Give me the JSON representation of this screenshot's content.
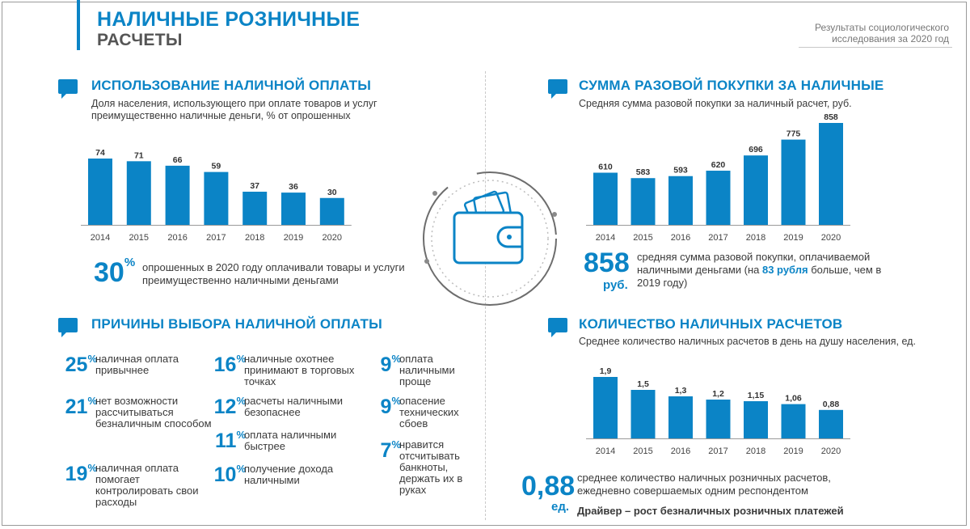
{
  "header": {
    "title_line1": "НАЛИЧНЫЕ РОЗНИЧНЫЕ",
    "title_line2": "РАСЧЕТЫ",
    "source_note": "Результаты социологического исследования за 2020 год"
  },
  "usage": {
    "title": "ИСПОЛЬЗОВАНИЕ НАЛИЧНОЙ ОПЛАТЫ",
    "subtitle": "Доля населения, использующего при оплате товаров и услуг преимущественно наличные деньги, % от опрошенных",
    "highlight_value": "30",
    "highlight_unit": "%",
    "highlight_text": "опрошенных в 2020 году оплачивали товары и услуги преимущественно наличными деньгами"
  },
  "purchase": {
    "title": "СУММА РАЗОВОЙ ПОКУПКИ ЗА НАЛИЧНЫЕ",
    "subtitle": "Средняя сумма разовой покупки за наличный расчет, руб.",
    "highlight_value": "858",
    "highlight_unit": "руб.",
    "highlight_text_a": "средняя сумма разовой покупки, оплачиваемой наличными деньгами (на ",
    "highlight_bold": "83 рубля",
    "highlight_text_b": " больше, чем в 2019 году)"
  },
  "reasons": {
    "title": "ПРИЧИНЫ ВЫБОРА НАЛИЧНОЙ ОПЛАТЫ",
    "items": [
      {
        "pct": "25",
        "unit": "%",
        "text": "наличная оплата привычнее"
      },
      {
        "pct": "21",
        "unit": "%",
        "text": "нет возможности рассчитываться безналичным способом"
      },
      {
        "pct": "19",
        "unit": "%",
        "text": "наличная оплата помогает контролировать свои расходы"
      },
      {
        "pct": "16",
        "unit": "%",
        "text": "наличные охотнее принимают в торговых точках"
      },
      {
        "pct": "12",
        "unit": "%",
        "text": "расчеты наличными безопаснее"
      },
      {
        "pct": "11",
        "unit": "%",
        "text": "оплата наличными быстрее"
      },
      {
        "pct": "10",
        "unit": "%",
        "text": "получение дохода наличными"
      },
      {
        "pct": "9",
        "unit": "%",
        "text": "оплата наличными проще"
      },
      {
        "pct": "9",
        "unit": "%",
        "text": "опасение технических сбоев"
      },
      {
        "pct": "7",
        "unit": "%",
        "text": "нравится отсчитывать банкноты, держать их в руках"
      }
    ]
  },
  "count": {
    "title": "КОЛИЧЕСТВО НАЛИЧНЫХ РАСЧЕТОВ",
    "subtitle": "Среднее количество наличных расчетов в день на душу населения, ед.",
    "highlight_value": "0,88",
    "highlight_unit": "ед.",
    "highlight_text": "среднее количество наличных розничных расчетов, ежедневно совершаемых одним респондентом",
    "driver": "Драйвер – рост безналичных розничных платежей"
  },
  "icons": {
    "section": "speech-bubble-icon",
    "center": "wallet-icon"
  },
  "colors": {
    "accent": "#0b84c6",
    "bar": "#0b84c6",
    "text": "#3a3a3a",
    "muted": "#777777"
  },
  "chart_data": [
    {
      "type": "bar",
      "categories": [
        "2014",
        "2015",
        "2016",
        "2017",
        "2018",
        "2019",
        "2020"
      ],
      "values": [
        74,
        71,
        66,
        59,
        37,
        36,
        30
      ],
      "labels": [
        "74",
        "71",
        "66",
        "59",
        "37",
        "36",
        "30"
      ],
      "ylim": [
        0,
        74
      ]
    },
    {
      "type": "bar",
      "categories": [
        "2014",
        "2015",
        "2016",
        "2017",
        "2018",
        "2019",
        "2020"
      ],
      "values": [
        610,
        583,
        593,
        620,
        696,
        775,
        858
      ],
      "labels": [
        "610",
        "583",
        "593",
        "620",
        "696",
        "775",
        "858"
      ],
      "ylim": [
        350,
        858
      ]
    },
    {
      "type": "bar",
      "categories": [
        "2014",
        "2015",
        "2016",
        "2017",
        "2018",
        "2019",
        "2020"
      ],
      "values": [
        1.9,
        1.5,
        1.3,
        1.2,
        1.15,
        1.06,
        0.88
      ],
      "labels": [
        "1,9",
        "1,5",
        "1,3",
        "1,2",
        "1,15",
        "1,06",
        "0,88"
      ],
      "ylim": [
        0,
        1.9
      ]
    }
  ]
}
